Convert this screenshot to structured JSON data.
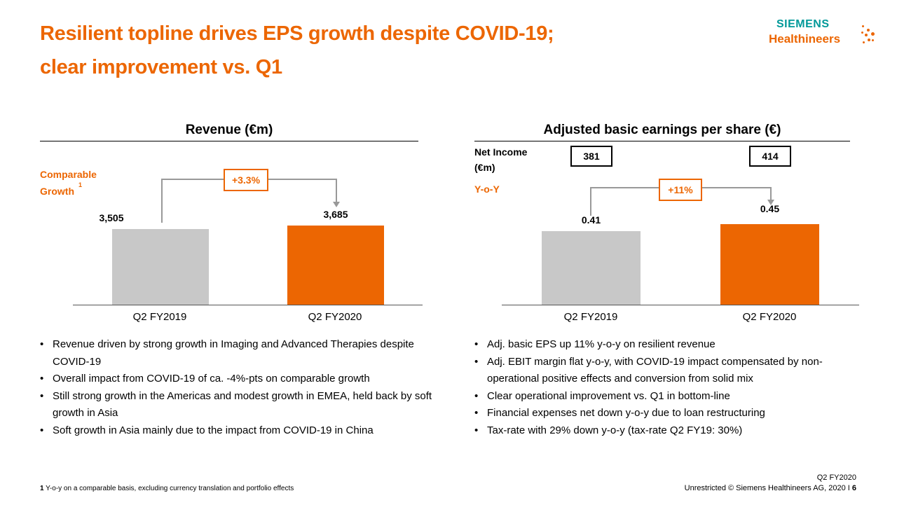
{
  "title": [
    "Resilient topline drives EPS growth despite COVID-19;",
    "clear improvement vs. Q1"
  ],
  "logo": {
    "line1": "SIEMENS",
    "line2": "Healthineers"
  },
  "colors": {
    "accent": "#ec6602",
    "prior_bar": "#c8c8c8",
    "current_bar": "#ec6602",
    "logo_teal": "#009999"
  },
  "chart_data": [
    {
      "type": "bar",
      "title": "Revenue (€m)",
      "categories": [
        "Q2 FY2019",
        "Q2 FY2020"
      ],
      "values": [
        3505,
        3685
      ],
      "value_labels": [
        "3,505",
        "3,685"
      ],
      "growth_label": "Comparable Growth",
      "growth_footnote_ref": "1",
      "growth_value": "+3.3%",
      "ylim": [
        0,
        3700
      ]
    },
    {
      "type": "bar",
      "title": "Adjusted basic earnings per share (€)",
      "categories": [
        "Q2 FY2019",
        "Q2 FY2020"
      ],
      "values": [
        0.41,
        0.45
      ],
      "value_labels": [
        "0.41",
        "0.45"
      ],
      "net_income_label": [
        "Net Income",
        "(€m)"
      ],
      "net_income_values": [
        "381",
        "414"
      ],
      "growth_label": "Y-o-Y",
      "growth_value": "+11%",
      "ylim": [
        0,
        0.45
      ]
    }
  ],
  "bullets_left": [
    "Revenue driven by strong growth in Imaging and Advanced Therapies despite COVID-19",
    "Overall impact from COVID-19 of ca. -4%-pts on comparable growth",
    "Still strong growth in the Americas and modest growth in EMEA, held back by soft growth in Asia",
    "Soft growth in Asia mainly due to the impact from COVID-19 in China"
  ],
  "bullets_right": [
    "Adj. basic EPS up 11% y-o-y on resilient revenue",
    "Adj. EBIT margin flat y-o-y, with COVID-19 impact compensated by non-operational positive effects and conversion from solid mix",
    "Clear operational improvement vs. Q1 in bottom-line",
    "Financial expenses net down y-o-y due to loan restructuring",
    "Tax-rate with 29% down y-o-y (tax-rate Q2 FY19: 30%)"
  ],
  "footnote": {
    "num": "1",
    "text": "Y-o-y on a comparable basis, excluding currency translation and portfolio effects"
  },
  "footer": {
    "period": "Q2 FY2020",
    "copyright": "Unrestricted © Siemens Healthineers AG, 2020 I",
    "page": "6"
  }
}
